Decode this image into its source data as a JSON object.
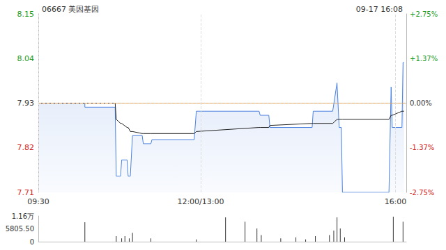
{
  "chart_data": [
    {
      "type": "line",
      "title": "06667 美因基因",
      "subtitle": "09-17 16:08",
      "x": [
        0,
        43,
        43,
        71,
        72,
        76,
        77,
        82,
        83,
        85,
        87,
        96,
        97,
        104,
        105,
        144,
        146,
        204,
        205,
        213,
        214,
        253,
        254,
        272,
        276,
        278,
        280,
        281,
        324,
        326,
        327,
        336,
        337,
        338
      ],
      "xlim": [
        0,
        340
      ],
      "xticks": [
        {
          "value": 0,
          "label": "09:30"
        },
        {
          "value": 150,
          "label": "12:00/13:00"
        },
        {
          "value": 330,
          "label": "16:00"
        }
      ],
      "ylim": [
        7.71,
        8.15
      ],
      "yticks": [
        7.71,
        7.82,
        7.93,
        8.04,
        8.15
      ],
      "y2lim": [
        -2.75,
        2.75
      ],
      "y2ticks": [
        {
          "value": -2.75,
          "label": "-2.75%"
        },
        {
          "value": -1.37,
          "label": "-1.37%"
        },
        {
          "value": 0,
          "label": "0.00%"
        },
        {
          "value": 1.37,
          "label": "+1.37%"
        },
        {
          "value": 2.75,
          "label": "+2.75%"
        }
      ],
      "grid": true,
      "series": [
        {
          "color": "#4a80e0",
          "values": [
            7.93,
            7.93,
            7.92,
            7.92,
            7.75,
            7.75,
            7.79,
            7.79,
            7.75,
            7.75,
            7.85,
            7.85,
            7.83,
            7.83,
            7.84,
            7.84,
            7.91,
            7.91,
            7.9,
            7.9,
            7.87,
            7.87,
            7.91,
            7.91,
            7.98,
            7.87,
            7.87,
            7.71,
            7.71,
            7.97,
            7.87,
            7.87,
            8.03,
            8.03
          ]
        },
        {
          "color": "#222222",
          "values": [
            7.93,
            7.93,
            7.93,
            7.93,
            7.89,
            7.88,
            7.88,
            7.87,
            7.87,
            7.86,
            7.86,
            7.855,
            7.855,
            7.855,
            7.855,
            7.855,
            7.86,
            7.87,
            7.87,
            7.87,
            7.875,
            7.88,
            7.88,
            7.88,
            7.89,
            7.89,
            7.89,
            7.89,
            7.89,
            7.9,
            7.9,
            7.91,
            7.91,
            7.91
          ]
        }
      ]
    },
    {
      "type": "bar",
      "x": [
        43,
        72,
        77,
        80,
        84,
        87,
        104,
        146,
        173,
        191,
        202,
        206,
        224,
        238,
        247,
        256,
        269,
        273,
        276,
        279,
        283,
        328,
        337
      ],
      "values": [
        8800,
        2500,
        1500,
        2500,
        1500,
        4000,
        1500,
        1000,
        11000,
        9000,
        6000,
        3000,
        1500,
        2000,
        1000,
        2500,
        3000,
        5000,
        11000,
        6000,
        2000,
        11300,
        9000
      ],
      "color": "#333333",
      "xlim": [
        0,
        340
      ],
      "ylim": [
        0,
        11611
      ],
      "yticks": [
        0,
        {
          "value": 5805.5,
          "label": "5805.50"
        },
        {
          "value": 11611,
          "label": "1.16万"
        }
      ],
      "tick_labels": "y"
    }
  ]
}
